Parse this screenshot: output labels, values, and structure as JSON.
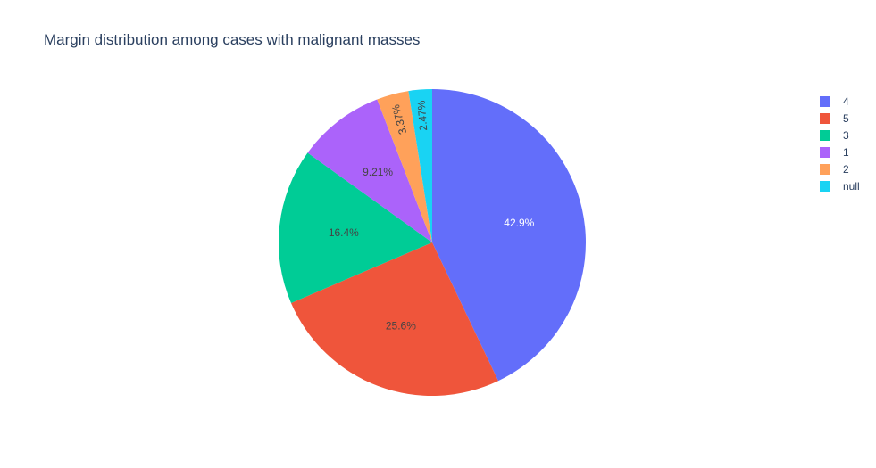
{
  "chart_data": {
    "type": "pie",
    "title": "Margin distribution among cases with malignant masses",
    "legend_position": "top-right",
    "slices": [
      {
        "label": "4",
        "value": 42.9,
        "display": "42.9%",
        "color": "#636efa",
        "text_color": "#ffffff"
      },
      {
        "label": "5",
        "value": 25.6,
        "display": "25.6%",
        "color": "#ef553b",
        "text_color": "#444444"
      },
      {
        "label": "3",
        "value": 16.4,
        "display": "16.4%",
        "color": "#00cc96",
        "text_color": "#444444"
      },
      {
        "label": "1",
        "value": 9.21,
        "display": "9.21%",
        "color": "#ab63fa",
        "text_color": "#444444"
      },
      {
        "label": "2",
        "value": 3.37,
        "display": "3.37%",
        "color": "#ffa15a",
        "text_color": "#444444"
      },
      {
        "label": "null",
        "value": 2.47,
        "display": "2.47%",
        "color": "#19d3f3",
        "text_color": "#444444"
      }
    ],
    "order": "clockwise from 12 o'clock, largest first"
  }
}
